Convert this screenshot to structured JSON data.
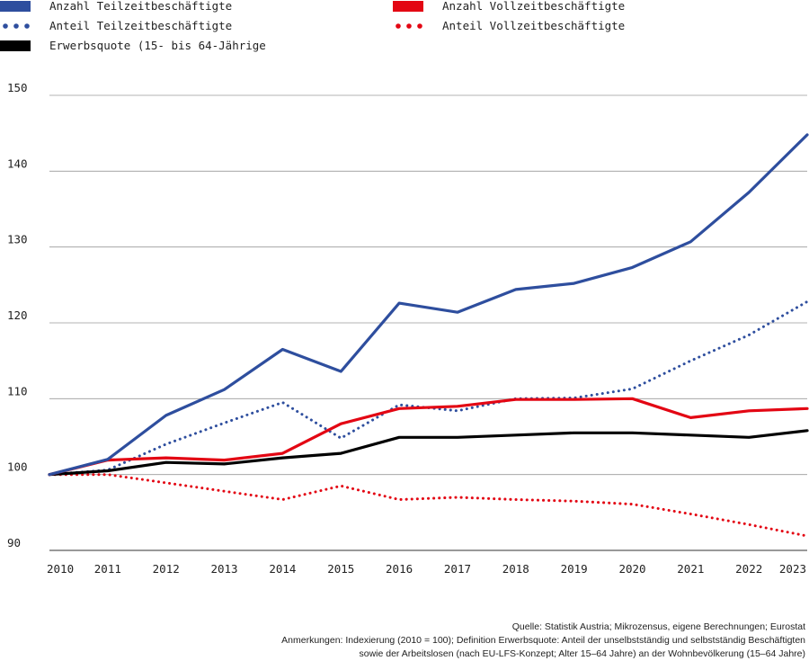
{
  "chart_data": {
    "type": "line",
    "title": "",
    "xlabel": "",
    "ylabel": "",
    "x": [
      "2010",
      "2011",
      "2012",
      "2013",
      "2014",
      "2015",
      "2016",
      "2017",
      "2018",
      "2019",
      "2020",
      "2021",
      "2022",
      "2023"
    ],
    "yticks": [
      90,
      100,
      110,
      120,
      130,
      140,
      150
    ],
    "ylim": [
      90,
      150
    ],
    "grid": "horizontal",
    "legend_position": "top",
    "series": [
      {
        "name": "Anzahl Teilzeitbeschäftigte",
        "color": "#2e4e9e",
        "style": "solid",
        "values": [
          100,
          102.0,
          107.8,
          111.2,
          116.5,
          113.6,
          122.6,
          121.4,
          124.4,
          125.2,
          127.3,
          130.7,
          137.2,
          144.8
        ]
      },
      {
        "name": "Anteil Teilzeitbeschäftigte",
        "color": "#2e4e9e",
        "style": "dotted",
        "values": [
          100,
          100.6,
          104.0,
          106.8,
          109.5,
          104.8,
          109.2,
          108.4,
          110.0,
          110.1,
          111.3,
          115.0,
          118.4,
          122.8
        ]
      },
      {
        "name": "Erwerbsquote (15- bis 64-Jährige",
        "color": "#000000",
        "style": "solid",
        "values": [
          100,
          100.5,
          101.6,
          101.4,
          102.2,
          102.8,
          104.9,
          104.9,
          105.2,
          105.5,
          105.5,
          105.2,
          104.9,
          105.8
        ]
      },
      {
        "name": "Anzahl Vollzeitbeschäftigte",
        "color": "#e30613",
        "style": "solid",
        "values": [
          100,
          101.9,
          102.2,
          101.9,
          102.8,
          106.7,
          108.7,
          109.0,
          109.9,
          109.9,
          110.0,
          107.5,
          108.4,
          108.7
        ]
      },
      {
        "name": "Anteil Vollzeitbeschäftigte",
        "color": "#e30613",
        "style": "dotted",
        "values": [
          100,
          100.0,
          98.9,
          97.8,
          96.7,
          98.5,
          96.7,
          97.0,
          96.7,
          96.5,
          96.1,
          94.8,
          93.4,
          91.9
        ]
      }
    ]
  },
  "footnotes": {
    "source": "Quelle: Statistik Austria; Mikrozensus, eigene Berechnungen; Eurostat",
    "notes_line1": "Anmerkungen: Indexierung (2010 = 100); Definition Erwerbsquote: Anteil der unselbstständig und selbstständig Beschäftigten",
    "notes_line2": "sowie der Arbeitslosen (nach EU-LFS-Konzept; Alter 15–64 Jahre) an der Wohnbevölkerung (15–64 Jahre)"
  }
}
